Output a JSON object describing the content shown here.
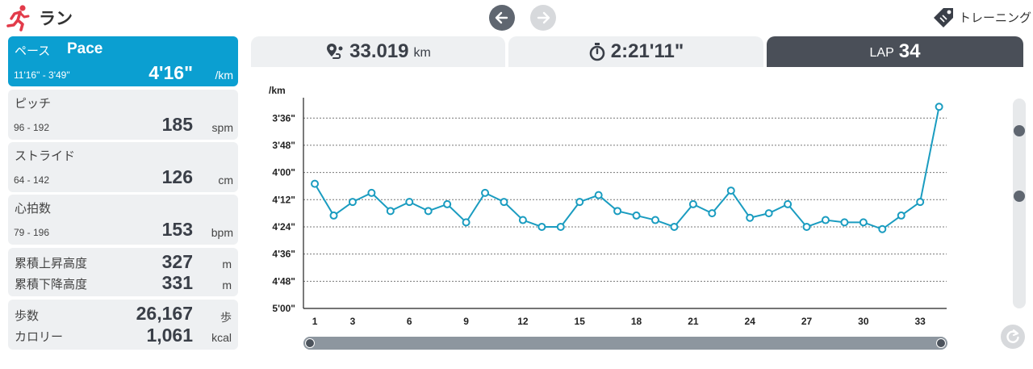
{
  "header": {
    "title": "ラン",
    "training_label": "トレーニング",
    "icons": {
      "runner": "runner-icon",
      "back": "arrow-left-icon",
      "forward": "arrow-right-icon",
      "tag": "tag-icon"
    }
  },
  "stats": {
    "pace": {
      "label_jp": "ペース",
      "label_en": "Pace",
      "range": "11'16\" - 3'49\"",
      "value": "4'16\"",
      "unit": "/km"
    },
    "pitch": {
      "label": "ピッチ",
      "range": "96 - 192",
      "value": "185",
      "unit": "spm"
    },
    "stride": {
      "label": "ストライド",
      "range": "64 - 142",
      "value": "126",
      "unit": "cm"
    },
    "heart_rate": {
      "label": "心拍数",
      "range": "79 - 196",
      "value": "153",
      "unit": "bpm"
    },
    "elevation": {
      "ascent_label": "累積上昇高度",
      "ascent_value": "327",
      "ascent_unit": "m",
      "descent_label": "累積下降高度",
      "descent_value": "331",
      "descent_unit": "m"
    },
    "steps": {
      "steps_label": "歩数",
      "steps_value": "26,167",
      "steps_unit": "歩",
      "calorie_label": "カロリー",
      "calorie_value": "1,061",
      "calorie_unit": "kcal"
    }
  },
  "summary": {
    "distance_value": "33.019",
    "distance_unit": "km",
    "time_value": "2:21'11\"",
    "lap_label": "LAP",
    "lap_value": "34"
  },
  "colors": {
    "accent": "#0b9fd1",
    "line": "#1a9cc0",
    "dark": "#4a4f58"
  },
  "chart_data": {
    "type": "line",
    "ylabel": "/km",
    "y_unit": "seconds per km (inverted axis, fastest at top)",
    "y_ticks": [
      {
        "label": "3'36\"",
        "value": 216
      },
      {
        "label": "3'48\"",
        "value": 228
      },
      {
        "label": "4'00\"",
        "value": 240
      },
      {
        "label": "4'12\"",
        "value": 252
      },
      {
        "label": "4'24\"",
        "value": 264
      },
      {
        "label": "4'36\"",
        "value": 276
      },
      {
        "label": "4'48\"",
        "value": 288
      },
      {
        "label": "5'00\"",
        "value": 300
      }
    ],
    "ylim": [
      300,
      207
    ],
    "x_ticks": [
      1,
      3,
      6,
      9,
      12,
      15,
      18,
      21,
      24,
      27,
      30,
      33
    ],
    "xlim": [
      0.4,
      34.4
    ],
    "grid": "horizontal dotted",
    "series": [
      {
        "x": [
          1,
          2,
          3,
          4,
          5,
          6,
          7,
          8,
          9,
          10,
          11,
          12,
          13,
          14,
          15,
          16,
          17,
          18,
          19,
          20,
          21,
          22,
          23,
          24,
          25,
          26,
          27,
          28,
          29,
          30,
          31,
          32,
          33,
          34
        ],
        "values": [
          245,
          259,
          253,
          249,
          257,
          253,
          257,
          254,
          262,
          249,
          253,
          261,
          264,
          264,
          253,
          250,
          257,
          259,
          261,
          264,
          254,
          258,
          248,
          260,
          258,
          254,
          264,
          261,
          262,
          262,
          265,
          259,
          253,
          211
        ]
      }
    ]
  }
}
